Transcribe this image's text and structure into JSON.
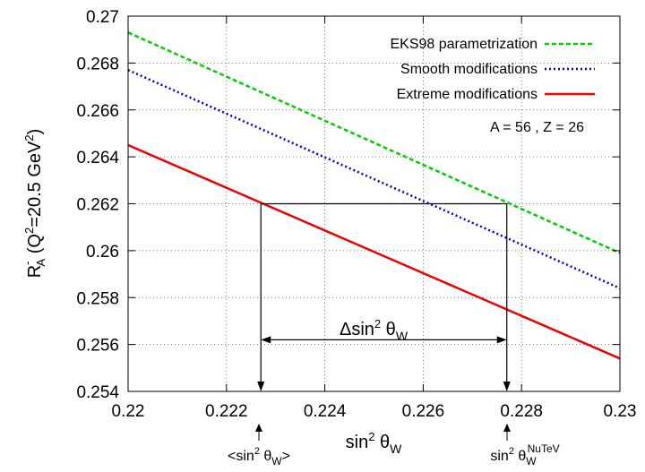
{
  "chart_data": {
    "type": "line",
    "xlabel": "sin",
    "xlabel_sup": "2",
    "xlabel_tail": " θ",
    "xlabel_sub": "W",
    "ylabel": {
      "prefix": "R",
      "prefix_sup": "-",
      "prefix_sub": "A",
      "open": " (Q",
      "q_sup": "2",
      "tail": "=20.5 GeV",
      "gev_sup": "2",
      "close": ")"
    },
    "xlim": [
      0.22,
      0.23
    ],
    "ylim": [
      0.254,
      0.27
    ],
    "x_ticks": [
      0.22,
      0.222,
      0.224,
      0.226,
      0.228,
      0.23
    ],
    "x_tick_labels": [
      "0.22",
      "0.222",
      "0.224",
      "0.226",
      "0.228",
      "0.23"
    ],
    "y_ticks": [
      0.254,
      0.256,
      0.258,
      0.26,
      0.262,
      0.264,
      0.266,
      0.268,
      0.27
    ],
    "y_tick_labels": [
      "0.254",
      "0.256",
      "0.258",
      "0.26",
      "0.262",
      "0.264",
      "0.266",
      "0.268",
      "0.27"
    ],
    "grid": true,
    "legend_position": "top-right",
    "series": [
      {
        "name": "EKS98 parametrization",
        "color": "#00d000",
        "style": "dashed",
        "x": [
          0.22,
          0.23
        ],
        "y": [
          0.2693,
          0.2599
        ]
      },
      {
        "name": "Smooth modifications",
        "color": "#0000cc",
        "style": "dotted",
        "x": [
          0.22,
          0.23
        ],
        "y": [
          0.2677,
          0.2584
        ]
      },
      {
        "name": "Extreme modifications",
        "color": "#ee0000",
        "style": "solid",
        "x": [
          0.22,
          0.23
        ],
        "y": [
          0.2645,
          0.2554
        ]
      }
    ],
    "annotations": {
      "text": "A = 56 , Z = 26",
      "construction": {
        "x_left": 0.2227,
        "x_right": 0.2277,
        "y_top": 0.262
      },
      "delta_label": {
        "prefix": "Δsin",
        "sup": "2",
        "tail": " θ",
        "sub": "W",
        "y": 0.2562
      },
      "left_marker": {
        "open": "<sin",
        "sup": "2",
        "tail": " θ",
        "sub": "W",
        "close": ">"
      },
      "right_marker": {
        "prefix": "sin",
        "sup": "2",
        "tail": " θ",
        "sub": "W",
        "sup2": "NuTeV"
      }
    }
  }
}
